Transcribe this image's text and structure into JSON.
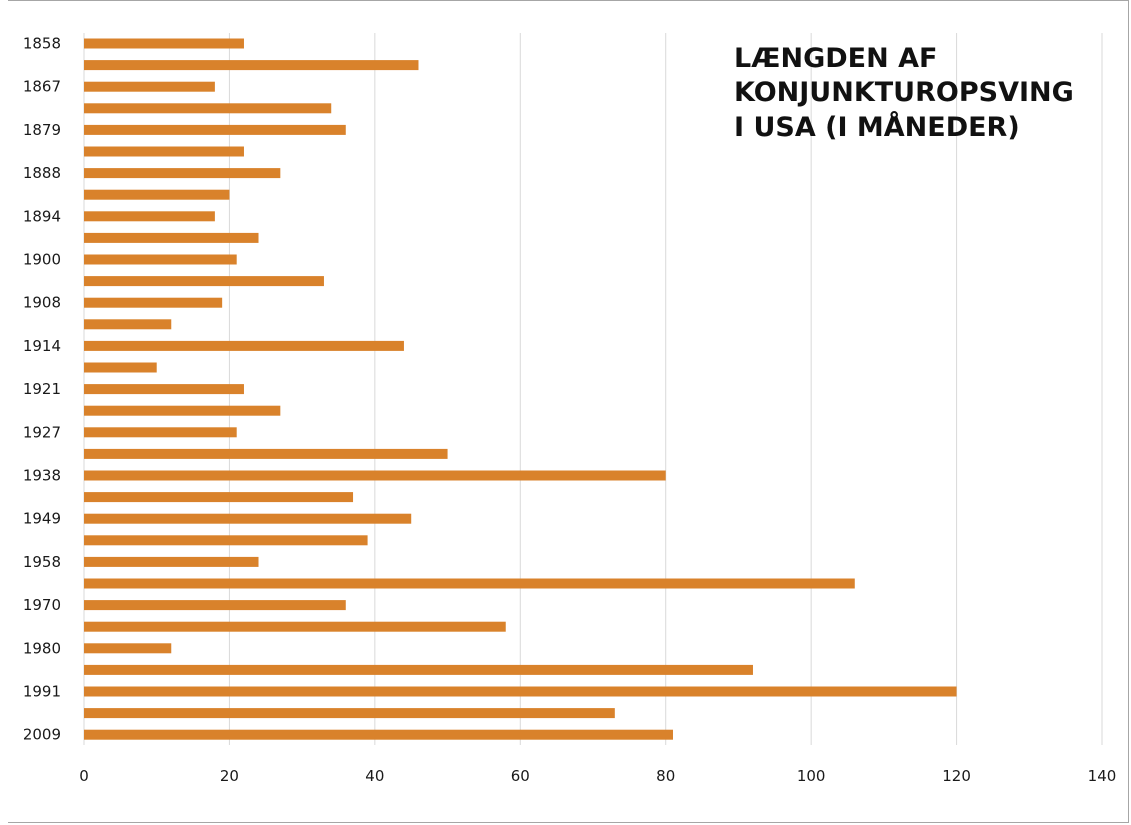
{
  "chart_data": {
    "type": "bar",
    "orientation": "horizontal",
    "title": [
      "LÆNGDEN AF",
      "KONJUNKTUROPSVING",
      "I USA (I MÅNEDER)"
    ],
    "categories": [
      "1858",
      "",
      "1867",
      "",
      "1879",
      "",
      "1888",
      "",
      "1894",
      "",
      "1900",
      "",
      "1908",
      "",
      "1914",
      "",
      "1921",
      "",
      "1927",
      "",
      "1938",
      "",
      "1949",
      "",
      "1958",
      "",
      "1970",
      "",
      "1980",
      "",
      "1991",
      "",
      "2009"
    ],
    "values": [
      22,
      46,
      18,
      34,
      36,
      22,
      27,
      20,
      18,
      24,
      21,
      33,
      19,
      12,
      44,
      10,
      22,
      27,
      21,
      50,
      80,
      37,
      45,
      39,
      24,
      106,
      36,
      58,
      12,
      92,
      120,
      73,
      81
    ],
    "xlim": [
      0,
      140
    ],
    "x_ticks": [
      0,
      20,
      40,
      60,
      80,
      100,
      120,
      140
    ],
    "y_tick_labels": [
      "1858",
      "1867",
      "1879",
      "1888",
      "1894",
      "1900",
      "1908",
      "1914",
      "1921",
      "1927",
      "1938",
      "1949",
      "1958",
      "1970",
      "1980",
      "1991",
      "2009"
    ],
    "bar_color": "#d9822b",
    "grid": "vertical",
    "gridline_color": "#d9d9d9",
    "xlabel": "",
    "ylabel": ""
  }
}
